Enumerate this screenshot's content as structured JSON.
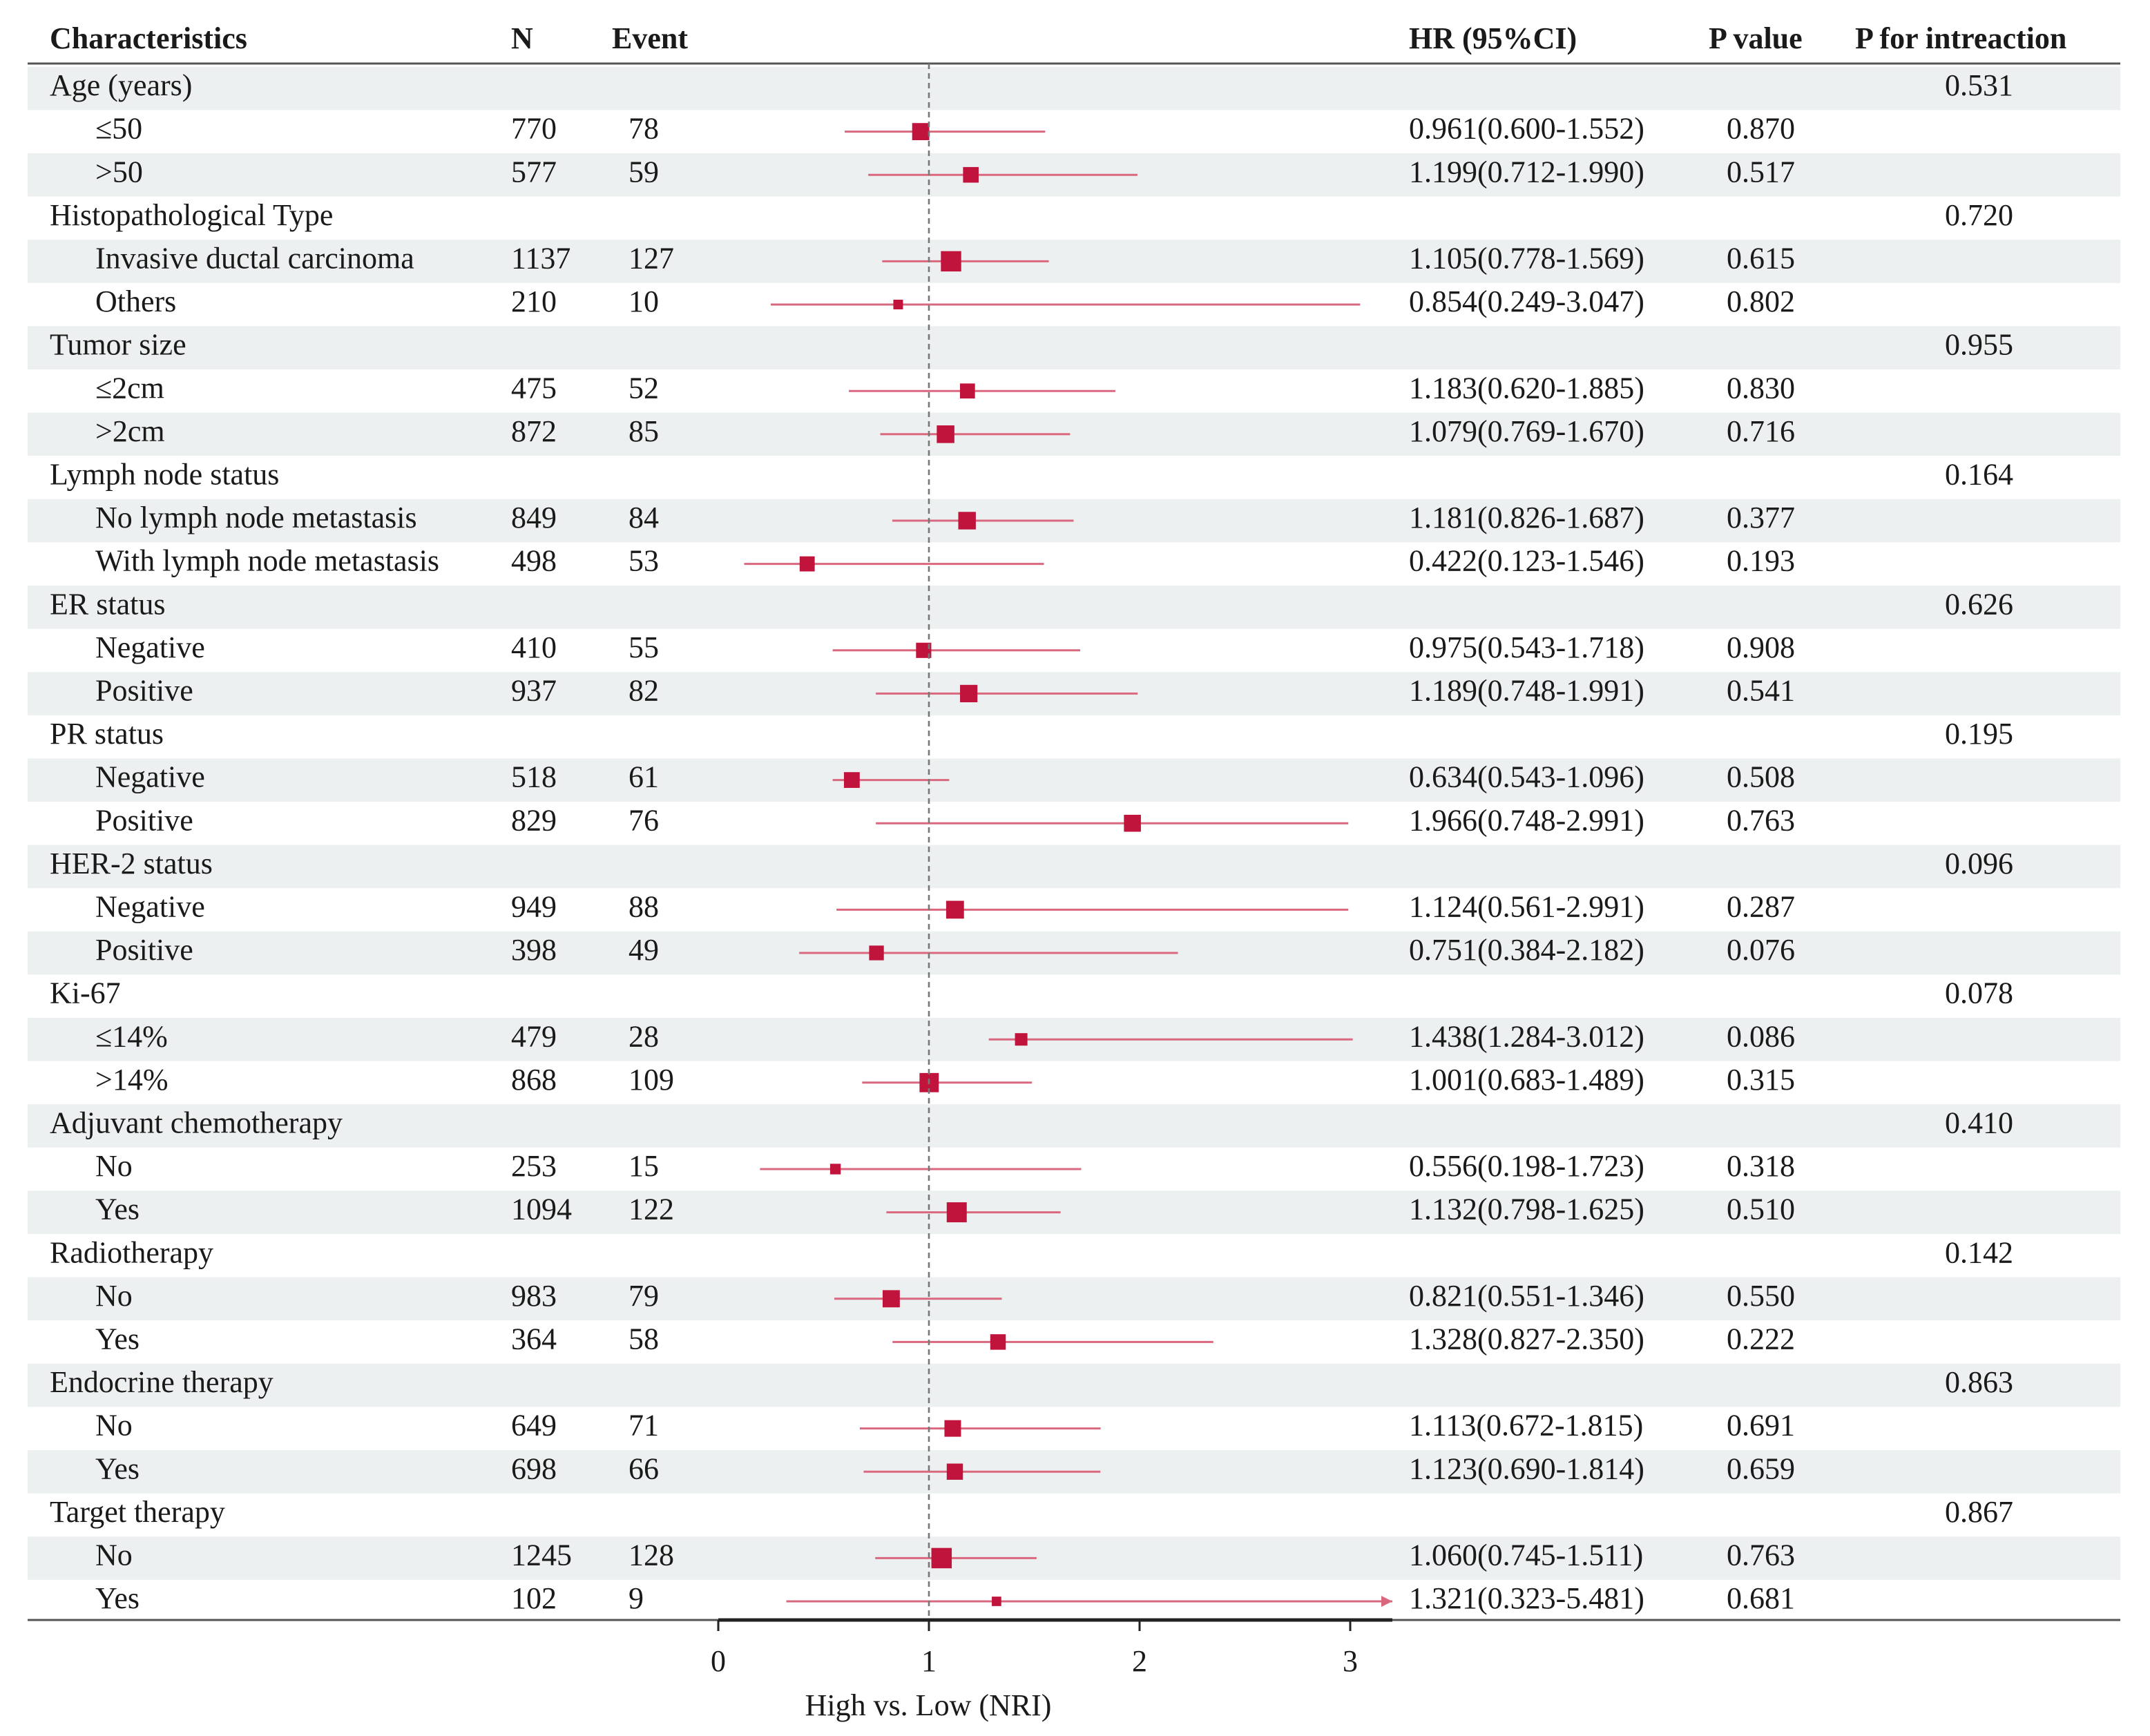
{
  "chart_data": {
    "type": "forest",
    "headers": {
      "label": "Characteristics",
      "n": "N",
      "event": "Event",
      "hr": "HR (95%CI)",
      "p": "P value",
      "p_interaction": "P for intreaction"
    },
    "x_label": "High vs. Low (NRI)",
    "xlim": [
      0,
      3.2
    ],
    "xticks": [
      0,
      1,
      2,
      3
    ],
    "reference_line": 1,
    "color": "#c0143c",
    "ci_color": "#d9687f",
    "rows": [
      {
        "label": "Age (years)",
        "p_interaction": "0.531"
      },
      {
        "label": "≤50",
        "n": 770,
        "event": 78,
        "hr": 0.961,
        "lo": 0.6,
        "hi": 1.552,
        "hr_label": "0.961(0.600-1.552)",
        "p": "0.870"
      },
      {
        "label": ">50",
        "n": 577,
        "event": 59,
        "hr": 1.199,
        "lo": 0.712,
        "hi": 1.99,
        "hr_label": "1.199(0.712-1.990)",
        "p": "0.517"
      },
      {
        "label": "Histopathological Type",
        "p_interaction": "0.720"
      },
      {
        "label": "Invasive ductal carcinoma",
        "n": 1137,
        "event": 127,
        "hr": 1.105,
        "lo": 0.778,
        "hi": 1.569,
        "hr_label": "1.105(0.778-1.569)",
        "p": "0.615"
      },
      {
        "label": "Others",
        "n": 210,
        "event": 10,
        "hr": 0.854,
        "lo": 0.249,
        "hi": 3.047,
        "hr_label": "0.854(0.249-3.047)",
        "p": "0.802"
      },
      {
        "label": "Tumor size",
        "p_interaction": "0.955"
      },
      {
        "label": "≤2cm",
        "n": 475,
        "event": 52,
        "hr": 1.183,
        "lo": 0.62,
        "hi": 1.885,
        "hr_label": "1.183(0.620-1.885)",
        "p": "0.830"
      },
      {
        "label": ">2cm",
        "n": 872,
        "event": 85,
        "hr": 1.079,
        "lo": 0.769,
        "hi": 1.67,
        "hr_label": "1.079(0.769-1.670)",
        "p": "0.716"
      },
      {
        "label": "Lymph node status",
        "p_interaction": "0.164"
      },
      {
        "label": "No lymph node metastasis",
        "n": 849,
        "event": 84,
        "hr": 1.181,
        "lo": 0.826,
        "hi": 1.687,
        "hr_label": "1.181(0.826-1.687)",
        "p": "0.377"
      },
      {
        "label": "With lymph node metastasis",
        "n": 498,
        "event": 53,
        "hr": 0.422,
        "lo": 0.123,
        "hi": 1.546,
        "hr_label": "0.422(0.123-1.546)",
        "p": "0.193"
      },
      {
        "label": "ER status",
        "p_interaction": "0.626"
      },
      {
        "label": "Negative",
        "n": 410,
        "event": 55,
        "hr": 0.975,
        "lo": 0.543,
        "hi": 1.718,
        "hr_label": "0.975(0.543-1.718)",
        "p": "0.908"
      },
      {
        "label": "Positive",
        "n": 937,
        "event": 82,
        "hr": 1.189,
        "lo": 0.748,
        "hi": 1.991,
        "hr_label": "1.189(0.748-1.991)",
        "p": "0.541"
      },
      {
        "label": "PR status",
        "p_interaction": "0.195"
      },
      {
        "label": "Negative",
        "n": 518,
        "event": 61,
        "hr": 0.634,
        "lo": 0.543,
        "hi": 1.096,
        "hr_label": "0.634(0.543-1.096)",
        "p": "0.508"
      },
      {
        "label": "Positive",
        "n": 829,
        "event": 76,
        "hr": 1.966,
        "lo": 0.748,
        "hi": 2.991,
        "hr_label": "1.966(0.748-2.991)",
        "p": "0.763"
      },
      {
        "label": "HER-2 status",
        "p_interaction": "0.096"
      },
      {
        "label": "Negative",
        "n": 949,
        "event": 88,
        "hr": 1.124,
        "lo": 0.561,
        "hi": 2.991,
        "hr_label": "1.124(0.561-2.991)",
        "p": "0.287"
      },
      {
        "label": "Positive",
        "n": 398,
        "event": 49,
        "hr": 0.751,
        "lo": 0.384,
        "hi": 2.182,
        "hr_label": "0.751(0.384-2.182)",
        "p": "0.076"
      },
      {
        "label": "Ki-67",
        "p_interaction": "0.078"
      },
      {
        "label": "≤14%",
        "n": 479,
        "event": 28,
        "hr": 1.438,
        "lo": 1.284,
        "hi": 3.012,
        "hr_label": "1.438(1.284-3.012)",
        "p": "0.086"
      },
      {
        "label": ">14%",
        "n": 868,
        "event": 109,
        "hr": 1.001,
        "lo": 0.683,
        "hi": 1.489,
        "hr_label": "1.001(0.683-1.489)",
        "p": "0.315"
      },
      {
        "label": "Adjuvant chemotherapy",
        "p_interaction": "0.410"
      },
      {
        "label": "No",
        "n": 253,
        "event": 15,
        "hr": 0.556,
        "lo": 0.198,
        "hi": 1.723,
        "hr_label": "0.556(0.198-1.723)",
        "p": "0.318"
      },
      {
        "label": "Yes",
        "n": 1094,
        "event": 122,
        "hr": 1.132,
        "lo": 0.798,
        "hi": 1.625,
        "hr_label": "1.132(0.798-1.625)",
        "p": "0.510"
      },
      {
        "label": "Radiotherapy",
        "p_interaction": "0.142"
      },
      {
        "label": "No",
        "n": 983,
        "event": 79,
        "hr": 0.821,
        "lo": 0.551,
        "hi": 1.346,
        "hr_label": "0.821(0.551-1.346)",
        "p": "0.550"
      },
      {
        "label": "Yes",
        "n": 364,
        "event": 58,
        "hr": 1.328,
        "lo": 0.827,
        "hi": 2.35,
        "hr_label": "1.328(0.827-2.350)",
        "p": "0.222"
      },
      {
        "label": "Endocrine therapy",
        "p_interaction": "0.863"
      },
      {
        "label": "No",
        "n": 649,
        "event": 71,
        "hr": 1.113,
        "lo": 0.672,
        "hi": 1.815,
        "hr_label": "1.113(0.672-1.815)",
        "p": "0.691"
      },
      {
        "label": "Yes",
        "n": 698,
        "event": 66,
        "hr": 1.123,
        "lo": 0.69,
        "hi": 1.814,
        "hr_label": "1.123(0.690-1.814)",
        "p": "0.659"
      },
      {
        "label": "Target therapy",
        "p_interaction": "0.867"
      },
      {
        "label": "No",
        "n": 1245,
        "event": 128,
        "hr": 1.06,
        "lo": 0.745,
        "hi": 1.511,
        "hr_label": "1.060(0.745-1.511)",
        "p": "0.763"
      },
      {
        "label": "Yes",
        "n": 102,
        "event": 9,
        "hr": 1.321,
        "lo": 0.323,
        "hi": 5.481,
        "hr_label": "1.321(0.323-5.481)",
        "p": "0.681"
      }
    ]
  }
}
